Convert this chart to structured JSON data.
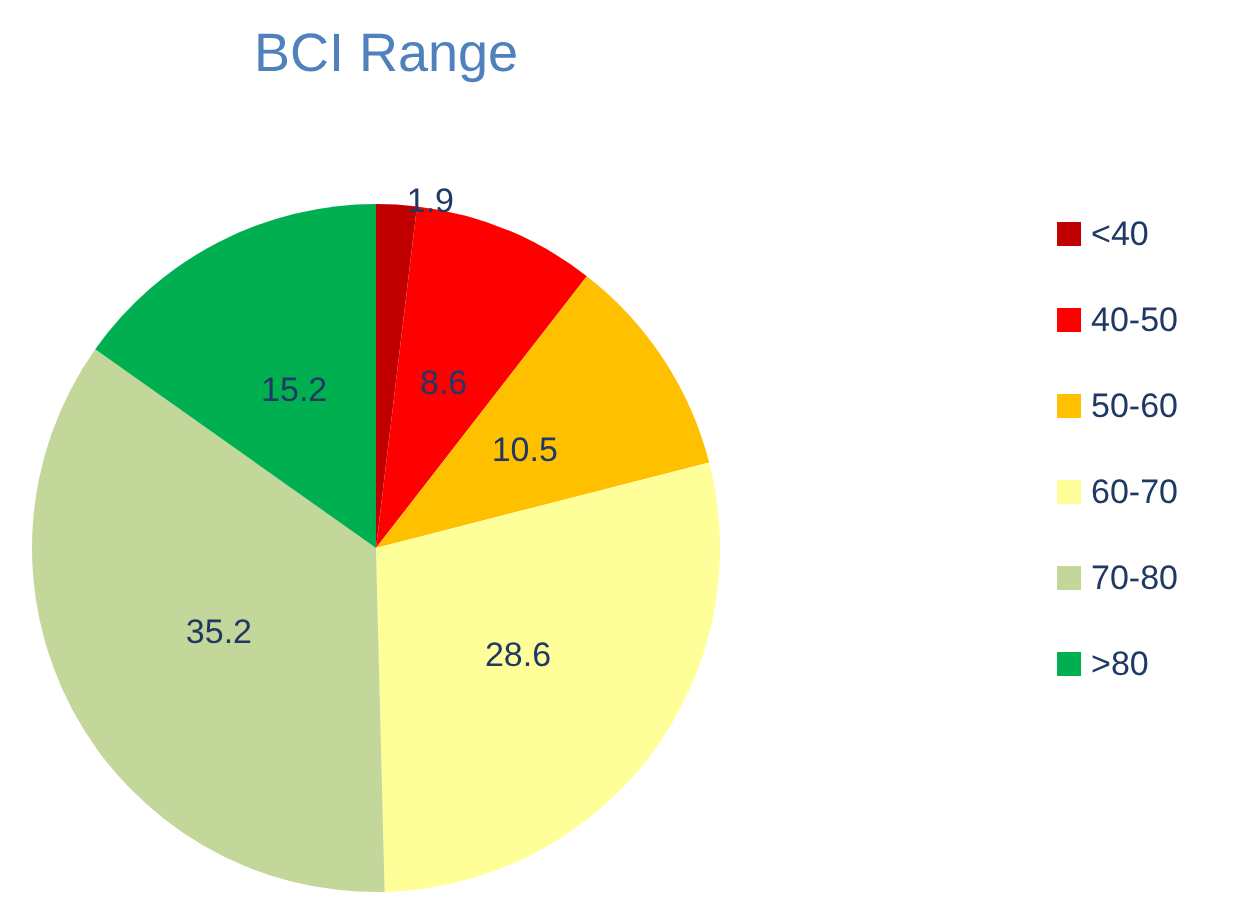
{
  "chart_data": {
    "type": "pie",
    "title": "BCI Range",
    "categories": [
      "<40",
      "40-50",
      "50-60",
      "60-70",
      "70-80",
      ">80"
    ],
    "values": [
      1.9,
      8.6,
      10.5,
      28.6,
      35.2,
      15.2
    ],
    "colors": [
      "#c00000",
      "#ff0000",
      "#ffc000",
      "#ffff99",
      "#c4d79b",
      "#00b050"
    ],
    "data_labels": true,
    "legend": "right"
  }
}
